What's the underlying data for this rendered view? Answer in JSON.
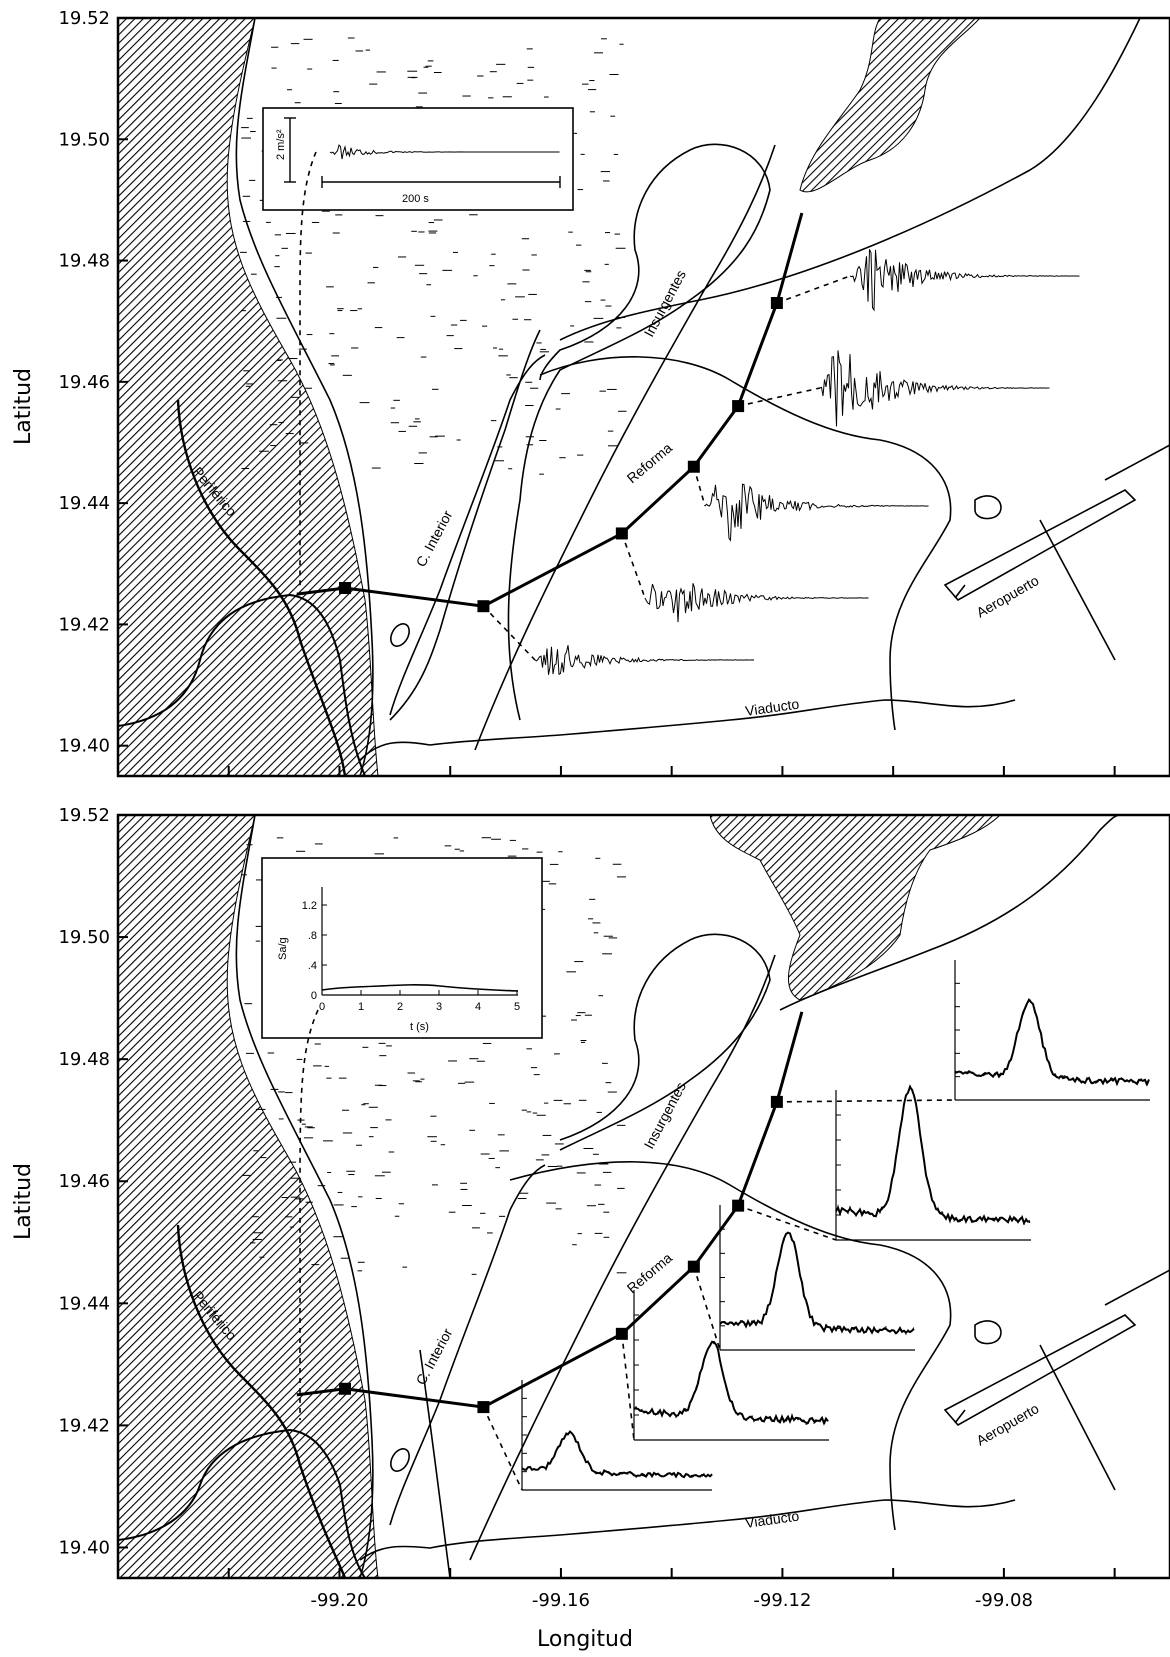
{
  "axes": {
    "ylabel": "Latitud",
    "xlabel": "Longitud",
    "y_ticks": [
      "19.52",
      "19.50",
      "19.48",
      "19.46",
      "19.44",
      "19.42",
      "19.40"
    ],
    "x_ticks": [
      "-99.20",
      "-99.16",
      "-99.12",
      "-99.08"
    ]
  },
  "streets": {
    "periferico": "Periférico",
    "c_interior": "C. Interior",
    "insurgentes": "Insurgentes",
    "reforma": "Reforma",
    "viaducto": "Viaducto",
    "aeropuerto": "Aeropuerto"
  },
  "top_inset": {
    "amplitude_scale": "2 m/s²",
    "time_scale": "200 s"
  },
  "bottom_inset": {
    "ylabel": "Sa/g",
    "xlabel": "t (s)",
    "y_ticks": [
      "1.2",
      ".8",
      ".4",
      "0"
    ],
    "x_ticks": [
      "0",
      "1",
      "2",
      "3",
      "4",
      "5"
    ]
  },
  "chart_data": {
    "type": "map",
    "panels": [
      "accelerograms",
      "response spectra"
    ],
    "xlim": [
      -99.24,
      -99.05
    ],
    "ylim": [
      19.395,
      19.52
    ],
    "stations": [
      {
        "lon": -99.199,
        "lat": 19.426
      },
      {
        "lon": -99.174,
        "lat": 19.423
      },
      {
        "lon": -99.149,
        "lat": 19.435
      },
      {
        "lon": -99.136,
        "lat": 19.446
      },
      {
        "lon": -99.128,
        "lat": 19.456
      },
      {
        "lon": -99.121,
        "lat": 19.473
      }
    ],
    "colors": {
      "line": "#000000",
      "hatch": "#000000",
      "background": "#ffffff"
    }
  }
}
